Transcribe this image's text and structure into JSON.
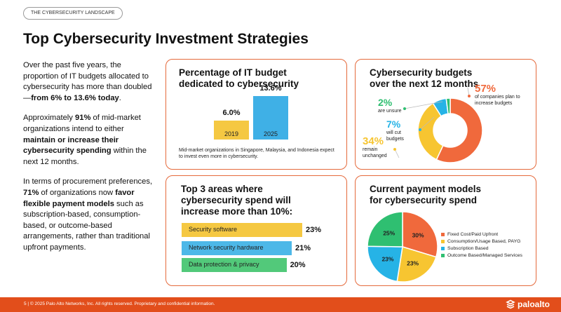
{
  "header": {
    "tag": "THE CYBERSECURITY LANDSCAPE",
    "title": "Top Cybersecurity Investment Strategies"
  },
  "left_text": {
    "p1_a": "Over the past five years, the proportion of IT budgets allocated to cybersecurity has more than doubled—",
    "p1_b": "from 6% to 13.6% today",
    "p1_c": ".",
    "p2_a": "Approximately ",
    "p2_b": "91%",
    "p2_c": " of mid-market organizations intend to either ",
    "p2_d": "maintain or increase their cybersecurity spending",
    "p2_e": " within the next 12 months.",
    "p3_a": "In terms of procurement preferences, ",
    "p3_b": "71%",
    "p3_c": " of organizations now ",
    "p3_d": "favor flexible payment models",
    "p3_e": " such as subscription-based, consumption-based, or outcome-based arrangements, rather than traditional upfront payments."
  },
  "cards": {
    "it_budget": {
      "title_line1": "Percentage of IT budget",
      "title_line2": "dedicated to cybersecurity",
      "note": "Mid-market organizations in Singapore, Malaysia, and Indonesia expect to invest even more in cybersecurity."
    },
    "budgets_next_12": {
      "title_line1": "Cybersecurity budgets",
      "title_line2": "over the next 12 months"
    },
    "top3": {
      "title_line1": "Top 3 areas where",
      "title_line2": "cybersecurity spend will",
      "title_line3": "increase more than 10%:"
    },
    "payment_models": {
      "title_line1": "Current payment models",
      "title_line2": "for cybersecurity spend"
    }
  },
  "chart_data": [
    {
      "type": "bar",
      "title": "Percentage of IT budget dedicated to cybersecurity",
      "categories": [
        "2019",
        "2025"
      ],
      "values": [
        6.0,
        13.6
      ],
      "value_labels": [
        "6.0%",
        "13.6%"
      ],
      "colors": [
        "#f5c842",
        "#3fb0e6"
      ],
      "ylim": [
        0,
        13.6
      ]
    },
    {
      "type": "pie",
      "title": "Cybersecurity budgets over the next 12 months",
      "donut": true,
      "slices": [
        {
          "label": "of companies plan to increase budgets",
          "value": 57,
          "display": "57%",
          "color": "#f0693c"
        },
        {
          "label": "remain unchanged",
          "value": 34,
          "display": "34%",
          "color": "#f7c531"
        },
        {
          "label": "will cut budgets",
          "value": 7,
          "display": "7%",
          "color": "#26b3e6"
        },
        {
          "label": "are unsure",
          "value": 2,
          "display": "2%",
          "color": "#2fbf71"
        }
      ]
    },
    {
      "type": "bar",
      "orientation": "horizontal",
      "title": "Top 3 areas where cybersecurity spend will increase more than 10%:",
      "categories": [
        "Security software",
        "Network security hardware",
        "Data protection & privacy"
      ],
      "values": [
        23,
        21,
        20
      ],
      "value_labels": [
        "23%",
        "21%",
        "20%"
      ],
      "colors": [
        "#f5c842",
        "#4db8e8",
        "#52c97a"
      ],
      "xlim": [
        0,
        23
      ]
    },
    {
      "type": "pie",
      "title": "Current payment models for cybersecurity spend",
      "slices": [
        {
          "label": "Fixed Cost/Paid Upfront",
          "value": 30,
          "display": "30%",
          "color": "#f0693c"
        },
        {
          "label": "Consumption/Usage Based, PAYG",
          "value": 23,
          "display": "23%",
          "color": "#f7c531"
        },
        {
          "label": "Subscription Based",
          "value": 23,
          "display": "23%",
          "color": "#26b3e6"
        },
        {
          "label": "Outcome Based/Managed Services",
          "value": 25,
          "display": "25%",
          "color": "#2fbf71"
        }
      ],
      "legend_position": "right"
    }
  ],
  "footer": {
    "text": "5  |  © 2025 Palo Alto Networks, Inc. All rights reserved. Proprietary and confidential information.",
    "logo_text": "paloalto"
  }
}
